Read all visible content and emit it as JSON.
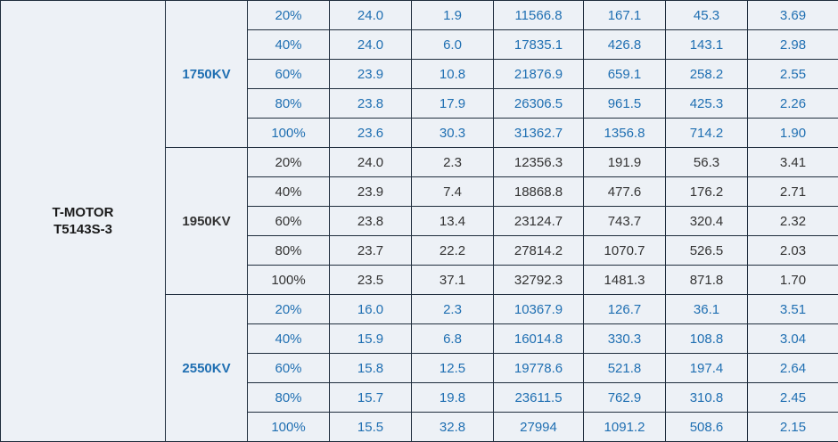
{
  "table": {
    "motor_line1": "T-MOTOR",
    "motor_line2": "T5143S-3",
    "colors": {
      "blue_text": "#1f6fb2",
      "dark_text": "#333333",
      "cell_bg": "#edf1f6",
      "border": "#1f2d3d"
    },
    "groups": [
      {
        "kv": "1750KV",
        "color": "blue",
        "rows": [
          [
            "20%",
            "24.0",
            "1.9",
            "11566.8",
            "167.1",
            "45.3",
            "3.69"
          ],
          [
            "40%",
            "24.0",
            "6.0",
            "17835.1",
            "426.8",
            "143.1",
            "2.98"
          ],
          [
            "60%",
            "23.9",
            "10.8",
            "21876.9",
            "659.1",
            "258.2",
            "2.55"
          ],
          [
            "80%",
            "23.8",
            "17.9",
            "26306.5",
            "961.5",
            "425.3",
            "2.26"
          ],
          [
            "100%",
            "23.6",
            "30.3",
            "31362.7",
            "1356.8",
            "714.2",
            "1.90"
          ]
        ]
      },
      {
        "kv": "1950KV",
        "color": "dark",
        "rows": [
          [
            "20%",
            "24.0",
            "2.3",
            "12356.3",
            "191.9",
            "56.3",
            "3.41"
          ],
          [
            "40%",
            "23.9",
            "7.4",
            "18868.8",
            "477.6",
            "176.2",
            "2.71"
          ],
          [
            "60%",
            "23.8",
            "13.4",
            "23124.7",
            "743.7",
            "320.4",
            "2.32"
          ],
          [
            "80%",
            "23.7",
            "22.2",
            "27814.2",
            "1070.7",
            "526.5",
            "2.03"
          ],
          [
            "100%",
            "23.5",
            "37.1",
            "32792.3",
            "1481.3",
            "871.8",
            "1.70"
          ]
        ]
      },
      {
        "kv": "2550KV",
        "color": "blue",
        "rows": [
          [
            "20%",
            "16.0",
            "2.3",
            "10367.9",
            "126.7",
            "36.1",
            "3.51"
          ],
          [
            "40%",
            "15.9",
            "6.8",
            "16014.8",
            "330.3",
            "108.8",
            "3.04"
          ],
          [
            "60%",
            "15.8",
            "12.5",
            "19778.6",
            "521.8",
            "197.4",
            "2.64"
          ],
          [
            "80%",
            "15.7",
            "19.8",
            "23611.5",
            "762.9",
            "310.8",
            "2.45"
          ],
          [
            "100%",
            "15.5",
            "32.8",
            "27994",
            "1091.2",
            "508.6",
            "2.15"
          ]
        ]
      }
    ]
  }
}
